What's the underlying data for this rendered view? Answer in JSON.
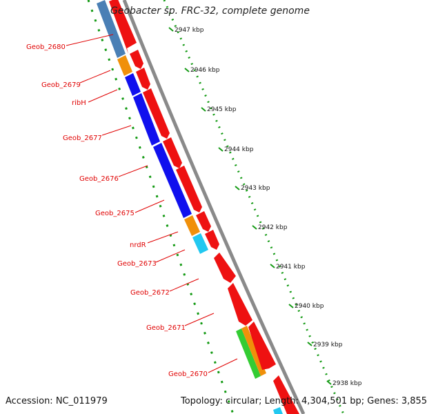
{
  "title": "Geobacter sp. FRC-32, complete genome",
  "footer": {
    "accession": "Accession: NC_011979",
    "summary": "Topology: circular; Length: 4,304,501 bp; Genes: 3,855"
  },
  "colors": {
    "cds": "#ee1111",
    "track_cog_steelblue": "#4a7fb5",
    "track_cog_orange": "#f0900a",
    "track_cog_blue": "#1010ee",
    "track_cog_cyan": "#22c8f0",
    "track_cog_green": "#33cc33",
    "backbone": "#8a8a8a",
    "ticks": "#119911",
    "label": "#e00000"
  },
  "scale_ticks": [
    "2947 kbp",
    "2946 kbp",
    "2945 kbp",
    "2944 kbp",
    "2943 kbp",
    "2942 kbp",
    "2941 kbp",
    "2940 kbp",
    "2939 kbp",
    "2938 kbp"
  ],
  "gene_labels": [
    "Geob_2680",
    "Geob_2679",
    "ribH",
    "Geob_2677",
    "Geob_2676",
    "Geob_2675",
    "nrdR",
    "Geob_2673",
    "Geob_2672",
    "Geob_2671",
    "Geob_2670"
  ]
}
